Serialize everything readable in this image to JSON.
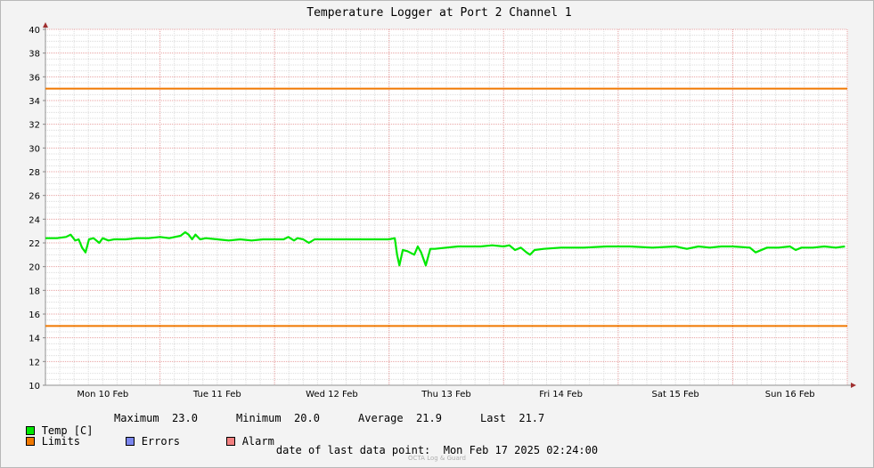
{
  "chart_data": {
    "type": "line",
    "title": "Temperature Logger at Port 2 Channel 1",
    "ylim": [
      10,
      40
    ],
    "y_ticks": [
      "10",
      "12",
      "14",
      "16",
      "18",
      "20",
      "22",
      "24",
      "26",
      "28",
      "30",
      "32",
      "34",
      "36",
      "38",
      "40"
    ],
    "x_tick_labels": [
      "Mon 10 Feb",
      "Tue 11 Feb",
      "Wed 12 Feb",
      "Thu 13 Feb",
      "Fri 14 Feb",
      "Sat 15 Feb",
      "Sun 16 Feb"
    ],
    "x_range_days": [
      0,
      7
    ],
    "grid": true,
    "series": [
      {
        "name": "Temp [C]",
        "color": "#00e800",
        "points": [
          [
            0.0,
            22.4
          ],
          [
            0.1,
            22.4
          ],
          [
            0.18,
            22.5
          ],
          [
            0.22,
            22.7
          ],
          [
            0.26,
            22.2
          ],
          [
            0.29,
            22.3
          ],
          [
            0.32,
            21.6
          ],
          [
            0.35,
            21.2
          ],
          [
            0.38,
            22.3
          ],
          [
            0.42,
            22.4
          ],
          [
            0.47,
            22.0
          ],
          [
            0.5,
            22.4
          ],
          [
            0.55,
            22.2
          ],
          [
            0.6,
            22.3
          ],
          [
            0.7,
            22.3
          ],
          [
            0.8,
            22.4
          ],
          [
            0.9,
            22.4
          ],
          [
            1.0,
            22.5
          ],
          [
            1.08,
            22.4
          ],
          [
            1.18,
            22.6
          ],
          [
            1.22,
            22.9
          ],
          [
            1.25,
            22.7
          ],
          [
            1.28,
            22.3
          ],
          [
            1.31,
            22.7
          ],
          [
            1.35,
            22.3
          ],
          [
            1.4,
            22.4
          ],
          [
            1.5,
            22.3
          ],
          [
            1.6,
            22.2
          ],
          [
            1.7,
            22.3
          ],
          [
            1.8,
            22.2
          ],
          [
            1.9,
            22.3
          ],
          [
            2.0,
            22.3
          ],
          [
            2.08,
            22.3
          ],
          [
            2.12,
            22.5
          ],
          [
            2.17,
            22.2
          ],
          [
            2.2,
            22.4
          ],
          [
            2.25,
            22.3
          ],
          [
            2.3,
            22.0
          ],
          [
            2.35,
            22.3
          ],
          [
            2.5,
            22.3
          ],
          [
            2.7,
            22.3
          ],
          [
            2.9,
            22.3
          ],
          [
            3.0,
            22.3
          ],
          [
            3.05,
            22.4
          ],
          [
            3.07,
            21.0
          ],
          [
            3.09,
            20.1
          ],
          [
            3.12,
            21.4
          ],
          [
            3.16,
            21.3
          ],
          [
            3.22,
            21.0
          ],
          [
            3.25,
            21.7
          ],
          [
            3.28,
            21.2
          ],
          [
            3.32,
            20.1
          ],
          [
            3.36,
            21.5
          ],
          [
            3.4,
            21.5
          ],
          [
            3.5,
            21.6
          ],
          [
            3.6,
            21.7
          ],
          [
            3.7,
            21.7
          ],
          [
            3.8,
            21.7
          ],
          [
            3.9,
            21.8
          ],
          [
            4.0,
            21.7
          ],
          [
            4.05,
            21.8
          ],
          [
            4.1,
            21.4
          ],
          [
            4.15,
            21.6
          ],
          [
            4.2,
            21.2
          ],
          [
            4.23,
            21.0
          ],
          [
            4.27,
            21.4
          ],
          [
            4.35,
            21.5
          ],
          [
            4.5,
            21.6
          ],
          [
            4.7,
            21.6
          ],
          [
            4.9,
            21.7
          ],
          [
            5.0,
            21.7
          ],
          [
            5.1,
            21.7
          ],
          [
            5.3,
            21.6
          ],
          [
            5.5,
            21.7
          ],
          [
            5.6,
            21.5
          ],
          [
            5.7,
            21.7
          ],
          [
            5.8,
            21.6
          ],
          [
            5.9,
            21.7
          ],
          [
            6.0,
            21.7
          ],
          [
            6.15,
            21.6
          ],
          [
            6.2,
            21.2
          ],
          [
            6.3,
            21.6
          ],
          [
            6.4,
            21.6
          ],
          [
            6.5,
            21.7
          ],
          [
            6.55,
            21.4
          ],
          [
            6.6,
            21.6
          ],
          [
            6.7,
            21.6
          ],
          [
            6.8,
            21.7
          ],
          [
            6.9,
            21.6
          ],
          [
            6.98,
            21.7
          ]
        ]
      },
      {
        "name": "Limits",
        "color": "#f07800",
        "values": [
          35,
          15
        ]
      }
    ]
  },
  "legend": {
    "temp_label": "Temp [C]",
    "limits_label": "Limits",
    "errors_label": "Errors",
    "alarm_label": "Alarm",
    "temp_color": "#00e800",
    "limits_color": "#f07800",
    "errors_color": "#7b86ee",
    "alarm_color": "#f28080"
  },
  "stats": {
    "maximum_label": "Maximum",
    "maximum": "23.0",
    "minimum_label": "Minimum",
    "minimum": "20.0",
    "average_label": "Average",
    "average": "21.9",
    "last_label": "Last",
    "last": "21.7"
  },
  "footer": {
    "last_point": "date of last data point:  Mon Feb 17 2025 02:24:00",
    "credit": "OCTA Log & Guard"
  }
}
